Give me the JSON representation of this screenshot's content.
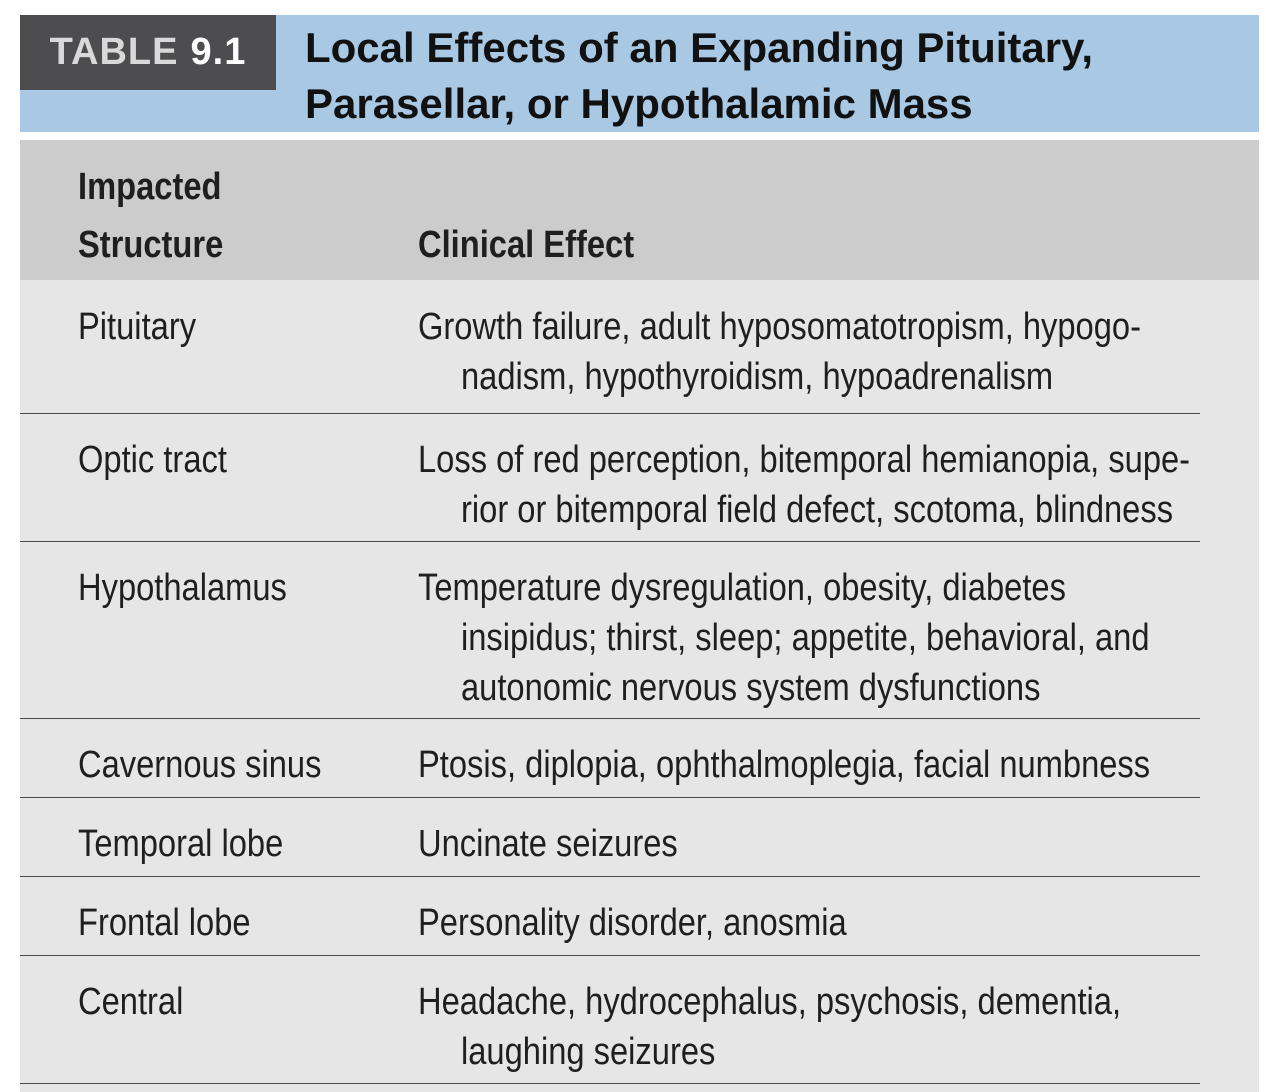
{
  "table": {
    "label_word": "TABLE",
    "label_number": "9.1",
    "title_line1": "Local Effects of an Expanding Pituitary,",
    "title_line2": "Parasellar, or Hypothalamic Mass"
  },
  "columns": {
    "structure_line1": "Impacted",
    "structure_line2": "Structure",
    "effect": "Clinical Effect"
  },
  "rows": [
    {
      "structure": "Pituitary",
      "effect_lines": [
        "Growth failure, adult hyposomatotropism, hypogo-",
        "nadism, hypothyroidism, hypoadrenalism"
      ]
    },
    {
      "structure": "Optic tract",
      "effect_lines": [
        "Loss of red perception, bitemporal hemianopia, supe-",
        "rior or bitemporal field defect, scotoma, blindness"
      ]
    },
    {
      "structure": "Hypothalamus",
      "effect_lines": [
        "Temperature dysregulation, obesity, diabetes",
        "insipidus; thirst, sleep; appetite, behavioral, and",
        "autonomic nervous system dysfunctions"
      ]
    },
    {
      "structure": "Cavernous sinus",
      "effect_lines": [
        "Ptosis, diplopia, ophthalmoplegia, facial numbness"
      ]
    },
    {
      "structure": "Temporal lobe",
      "effect_lines": [
        "Uncinate seizures"
      ]
    },
    {
      "structure": "Frontal lobe",
      "effect_lines": [
        "Personality disorder, anosmia"
      ]
    },
    {
      "structure": "Central",
      "effect_lines": [
        "Headache, hydrocephalus, psychosis, dementia,",
        "laughing seizures"
      ]
    }
  ],
  "colors": {
    "header_band": "#a9c8e3",
    "label_box": "#4d4d4f",
    "column_header": "#cccccc",
    "body": "#e6e6e6"
  }
}
